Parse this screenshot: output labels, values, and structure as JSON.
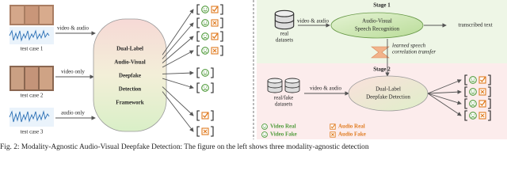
{
  "left": {
    "test_cases": [
      {
        "label": "test case 1",
        "input": "video & audio"
      },
      {
        "label": "test case 2",
        "input": "video only"
      },
      {
        "label": "test case 3",
        "input": "audio only"
      }
    ],
    "framework": [
      "Dual-Label",
      "Audio-Visual",
      "Deepfake",
      "Detection",
      "Framework"
    ]
  },
  "right": {
    "stage1": {
      "title": "Stage 1",
      "dataset": [
        "real",
        "datasets"
      ],
      "input": "video & audio",
      "model": [
        "Audio-Visual",
        "Speech Recognition"
      ],
      "output": "transcribed text"
    },
    "transfer": [
      "learned speech",
      "correlation transfer"
    ],
    "stage2": {
      "title": "Stage 2",
      "dataset": [
        "real/fake",
        "datasets"
      ],
      "input": "video & audio",
      "model": [
        "Dual-Label",
        "Deepfake Detection"
      ]
    },
    "legend": [
      "Video Real",
      "Audio Real",
      "Video Fake",
      "Audio Fake"
    ]
  },
  "caption": "Fig. 2: Modality-Agnostic Audio-Visual Deepfake Detection: The figure on the left shows three modality-agnostic detection"
}
